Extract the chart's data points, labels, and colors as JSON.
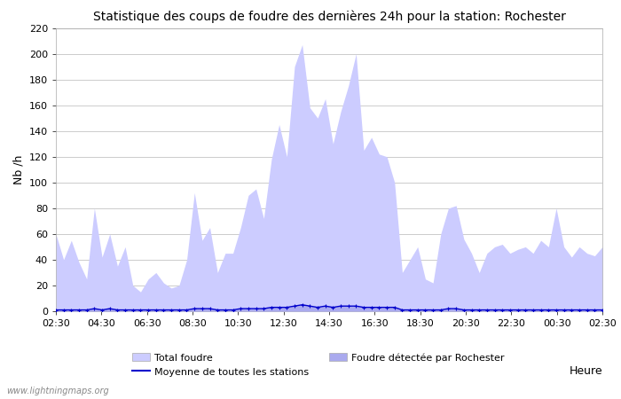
{
  "title": "Statistique des coups de foudre des dernières 24h pour la station: Rochester",
  "xlabel": "Heure",
  "ylabel": "Nb /h",
  "xlim_labels": [
    "02:30",
    "04:30",
    "06:30",
    "08:30",
    "10:30",
    "12:30",
    "14:30",
    "16:30",
    "18:30",
    "20:30",
    "22:30",
    "00:30",
    "02:30"
  ],
  "ylim": [
    0,
    220
  ],
  "yticks": [
    0,
    20,
    40,
    60,
    80,
    100,
    120,
    140,
    160,
    180,
    200,
    220
  ],
  "watermark": "www.lightningmaps.org",
  "legend_total_label": "Total foudre",
  "legend_moyenne_label": "Moyenne de toutes les stations",
  "legend_detected_label": "Foudre détectée par Rochester",
  "total_color": "#ccccff",
  "detected_color": "#aaaaee",
  "moyenne_color": "#0000cc",
  "background_color": "#ffffff",
  "grid_color": "#cccccc",
  "total_values": [
    60,
    40,
    55,
    38,
    25,
    80,
    42,
    60,
    35,
    50,
    20,
    15,
    25,
    30,
    22,
    18,
    20,
    40,
    92,
    55,
    65,
    30,
    45,
    45,
    65,
    90,
    95,
    72,
    118,
    145,
    120,
    190,
    207,
    158,
    150,
    165,
    130,
    155,
    175,
    200,
    125,
    135,
    122,
    120,
    100,
    30,
    40,
    50,
    25,
    22,
    60,
    80,
    82,
    56,
    45,
    30,
    45,
    50,
    52,
    45,
    48,
    50,
    45,
    55,
    50,
    80,
    50,
    42,
    50,
    45,
    43,
    50
  ],
  "detected_values": [
    1,
    1,
    1,
    1,
    1,
    2,
    1,
    2,
    1,
    1,
    1,
    1,
    1,
    1,
    1,
    1,
    1,
    1,
    2,
    2,
    2,
    1,
    1,
    1,
    2,
    2,
    2,
    2,
    3,
    3,
    3,
    4,
    5,
    4,
    3,
    4,
    3,
    4,
    4,
    4,
    3,
    3,
    3,
    3,
    3,
    1,
    1,
    1,
    1,
    1,
    1,
    2,
    2,
    1,
    1,
    1,
    1,
    1,
    1,
    1,
    1,
    1,
    1,
    1,
    1,
    1,
    1,
    1,
    1,
    1,
    1,
    1
  ],
  "moyenne_values": [
    1,
    1,
    1,
    1,
    1,
    2,
    1,
    2,
    1,
    1,
    1,
    1,
    1,
    1,
    1,
    1,
    1,
    1,
    2,
    2,
    2,
    1,
    1,
    1,
    2,
    2,
    2,
    2,
    3,
    3,
    3,
    4,
    5,
    4,
    3,
    4,
    3,
    4,
    4,
    4,
    3,
    3,
    3,
    3,
    3,
    1,
    1,
    1,
    1,
    1,
    1,
    2,
    2,
    1,
    1,
    1,
    1,
    1,
    1,
    1,
    1,
    1,
    1,
    1,
    1,
    1,
    1,
    1,
    1,
    1,
    1,
    1
  ]
}
